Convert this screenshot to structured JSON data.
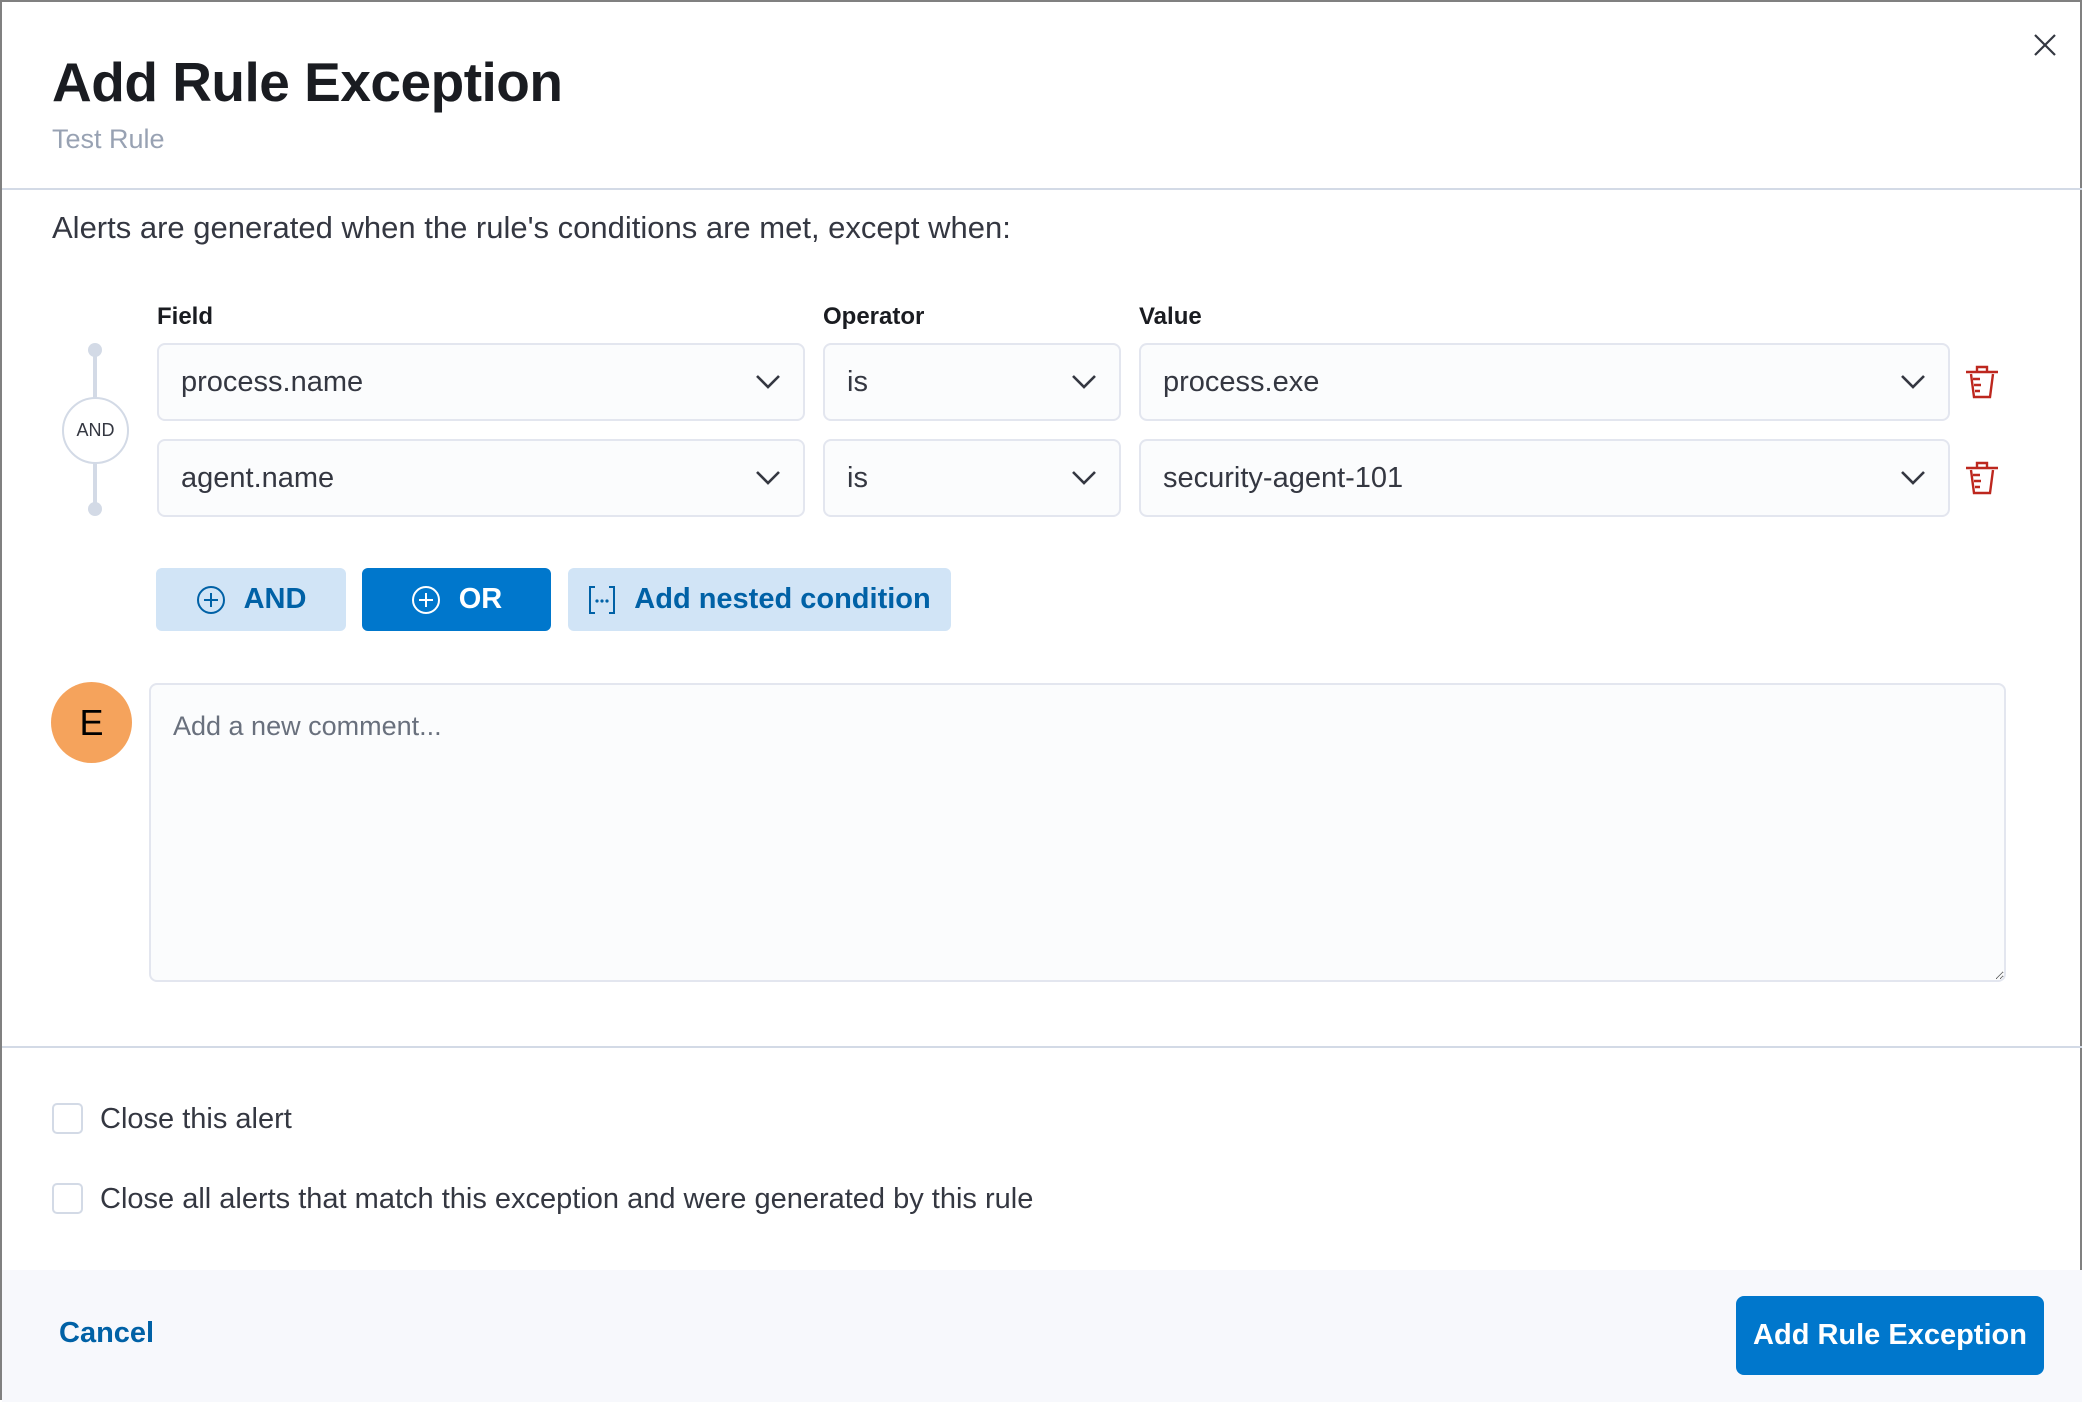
{
  "header": {
    "title": "Add Rule Exception",
    "subtitle": "Test Rule"
  },
  "intro": "Alerts are generated when the rule's conditions are met, except when:",
  "columns": {
    "field": "Field",
    "operator": "Operator",
    "value": "Value"
  },
  "conjunction": "AND",
  "entries": [
    {
      "field": "process.name",
      "operator": "is",
      "value": "process.exe"
    },
    {
      "field": "agent.name",
      "operator": "is",
      "value": "security-agent-101"
    }
  ],
  "buttons": {
    "and": "AND",
    "or": "OR",
    "nested": "Add nested condition"
  },
  "comment": {
    "avatar_initial": "E",
    "placeholder": "Add a new comment...",
    "value": ""
  },
  "checkboxes": [
    {
      "label": "Close this alert",
      "checked": false
    },
    {
      "label": "Close all alerts that match this exception and were generated by this rule",
      "checked": false
    }
  ],
  "footer": {
    "cancel": "Cancel",
    "submit": "Add Rule Exception"
  },
  "colors": {
    "primary": "#0077cc",
    "danger": "#bd271e",
    "avatar": "#f5a35c"
  }
}
